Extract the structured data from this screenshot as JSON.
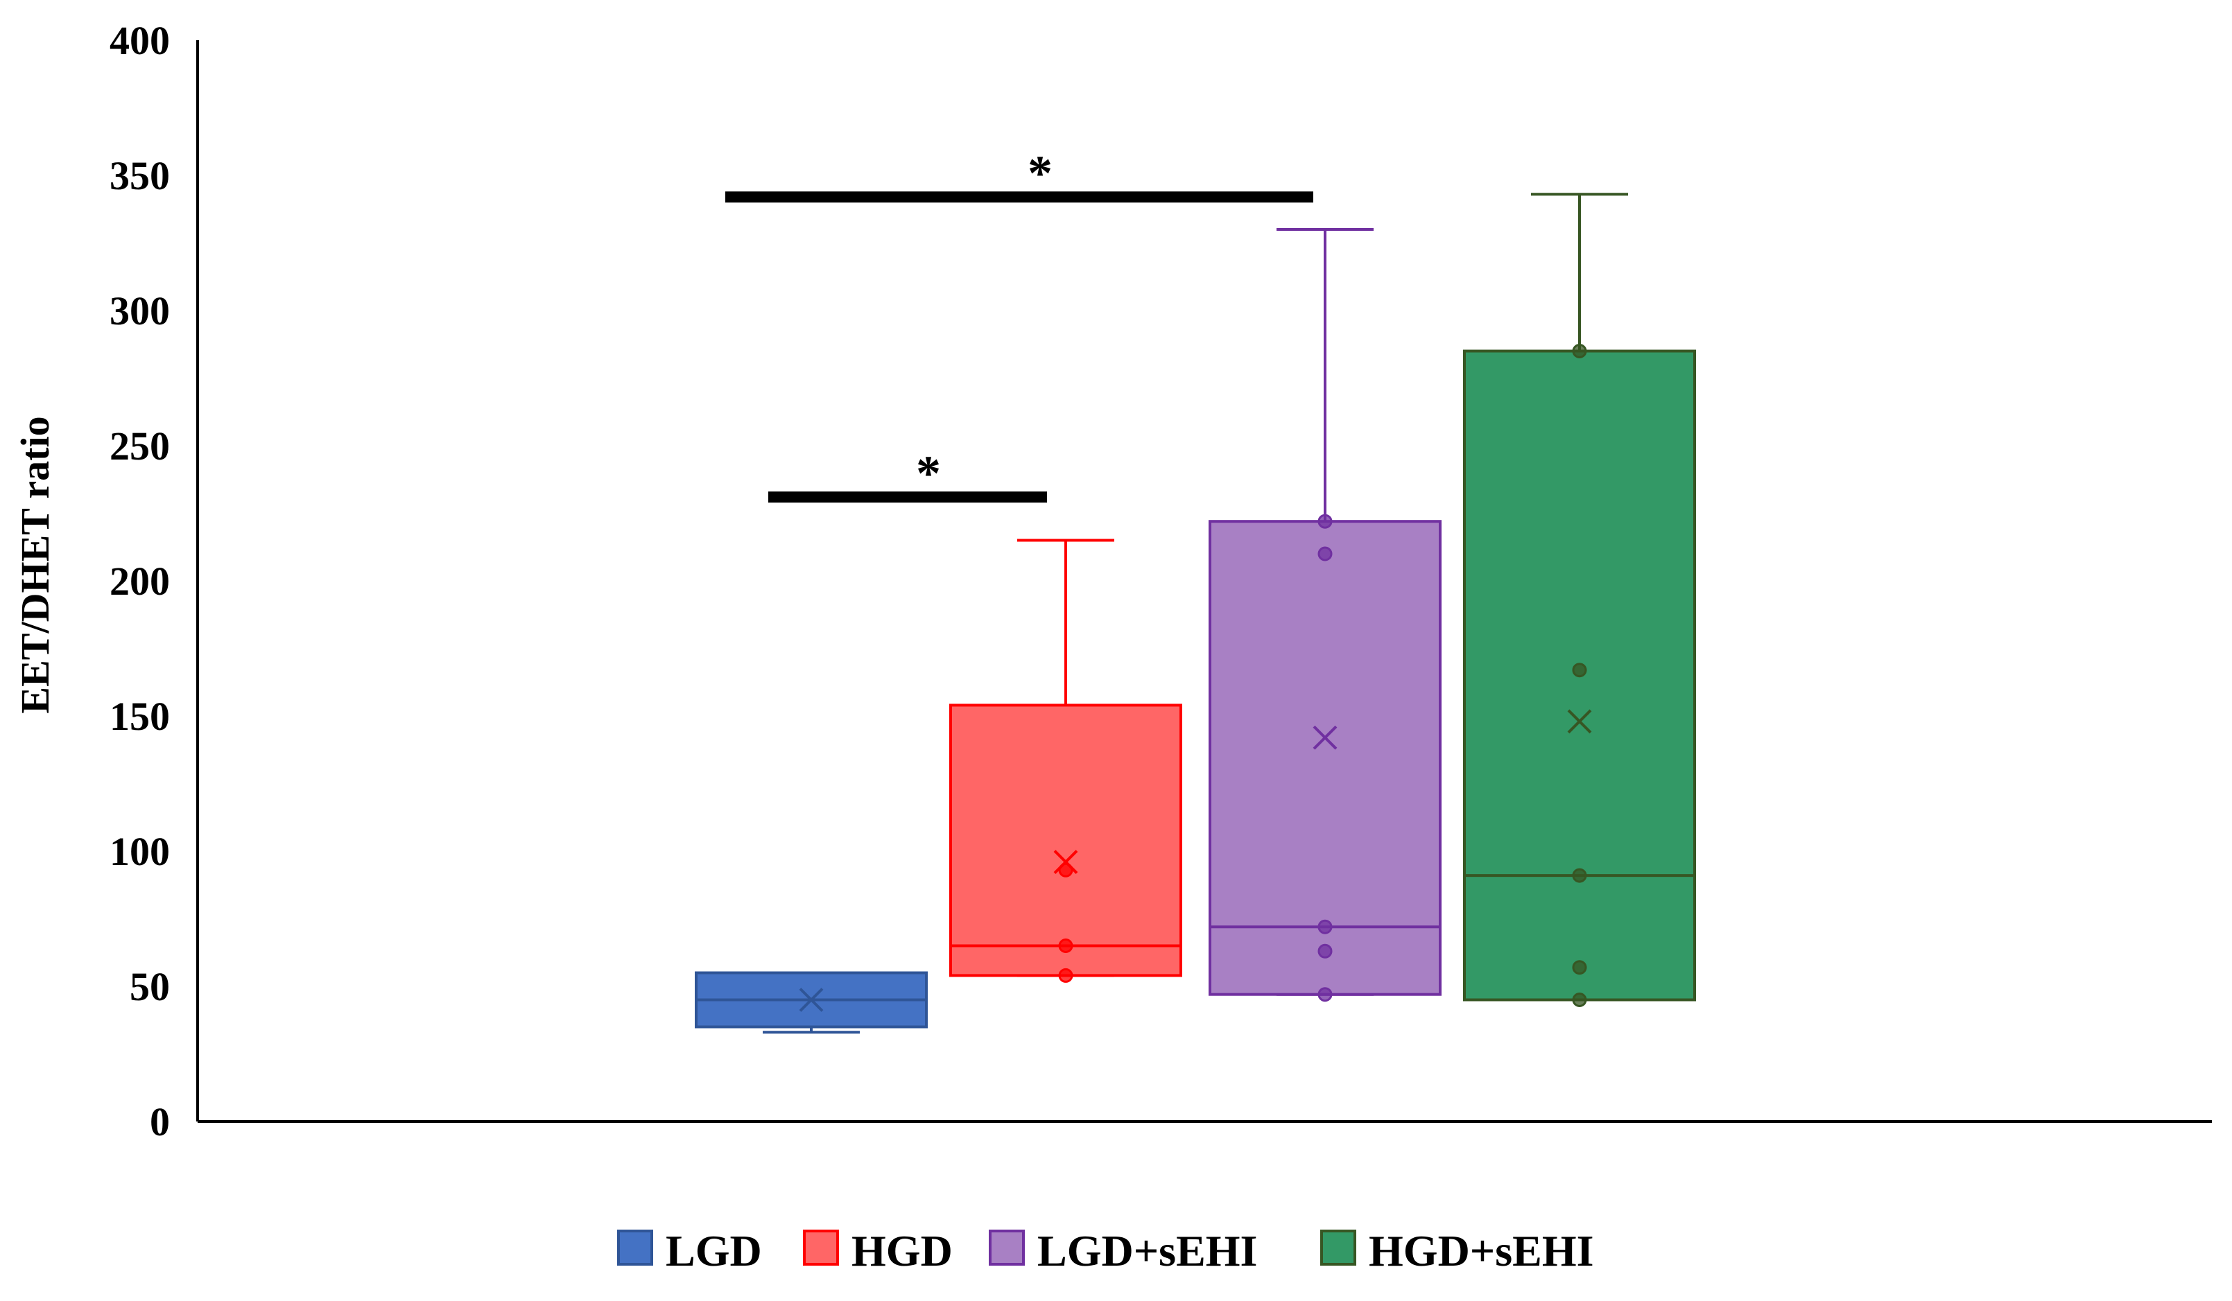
{
  "chart_data": {
    "type": "box",
    "title": "",
    "xlabel": "",
    "ylabel": "EET/DHET ratio",
    "ylim": [
      0,
      400
    ],
    "yticks": [
      0,
      50,
      100,
      150,
      200,
      250,
      300,
      350,
      400
    ],
    "grid": false,
    "legend_position": "bottom",
    "series": [
      {
        "name": "LGD",
        "color": "#4472C4",
        "border": "#2F5597",
        "whisker_low": 33,
        "q1": 35,
        "median": 45,
        "q3": 55,
        "whisker_high": 55,
        "mean": 45,
        "points": []
      },
      {
        "name": "HGD",
        "color": "#FF6666",
        "border": "#FF0000",
        "whisker_low": 54,
        "q1": 54,
        "median": 65,
        "q3": 154,
        "whisker_high": 215,
        "mean": 96,
        "points": [
          54,
          65,
          93
        ]
      },
      {
        "name": "LGD+sEHI",
        "color": "#A880C4",
        "border": "#7030A0",
        "whisker_low": 47,
        "q1": 47,
        "median": 72,
        "q3": 222,
        "whisker_high": 330,
        "mean": 142,
        "points": [
          47,
          63,
          72,
          210,
          222
        ]
      },
      {
        "name": "HGD+sEHI",
        "color": "#339966",
        "border": "#375623",
        "whisker_low": 45,
        "q1": 45,
        "median": 91,
        "q3": 285,
        "whisker_high": 343,
        "mean": 148,
        "points": [
          45,
          57,
          91,
          167,
          285
        ]
      }
    ],
    "annotations": [
      {
        "label": "*",
        "from_series": 0,
        "to_series": 1,
        "y": 231
      },
      {
        "label": "*",
        "from_series": 0,
        "to_series": 2,
        "y": 342
      }
    ]
  }
}
